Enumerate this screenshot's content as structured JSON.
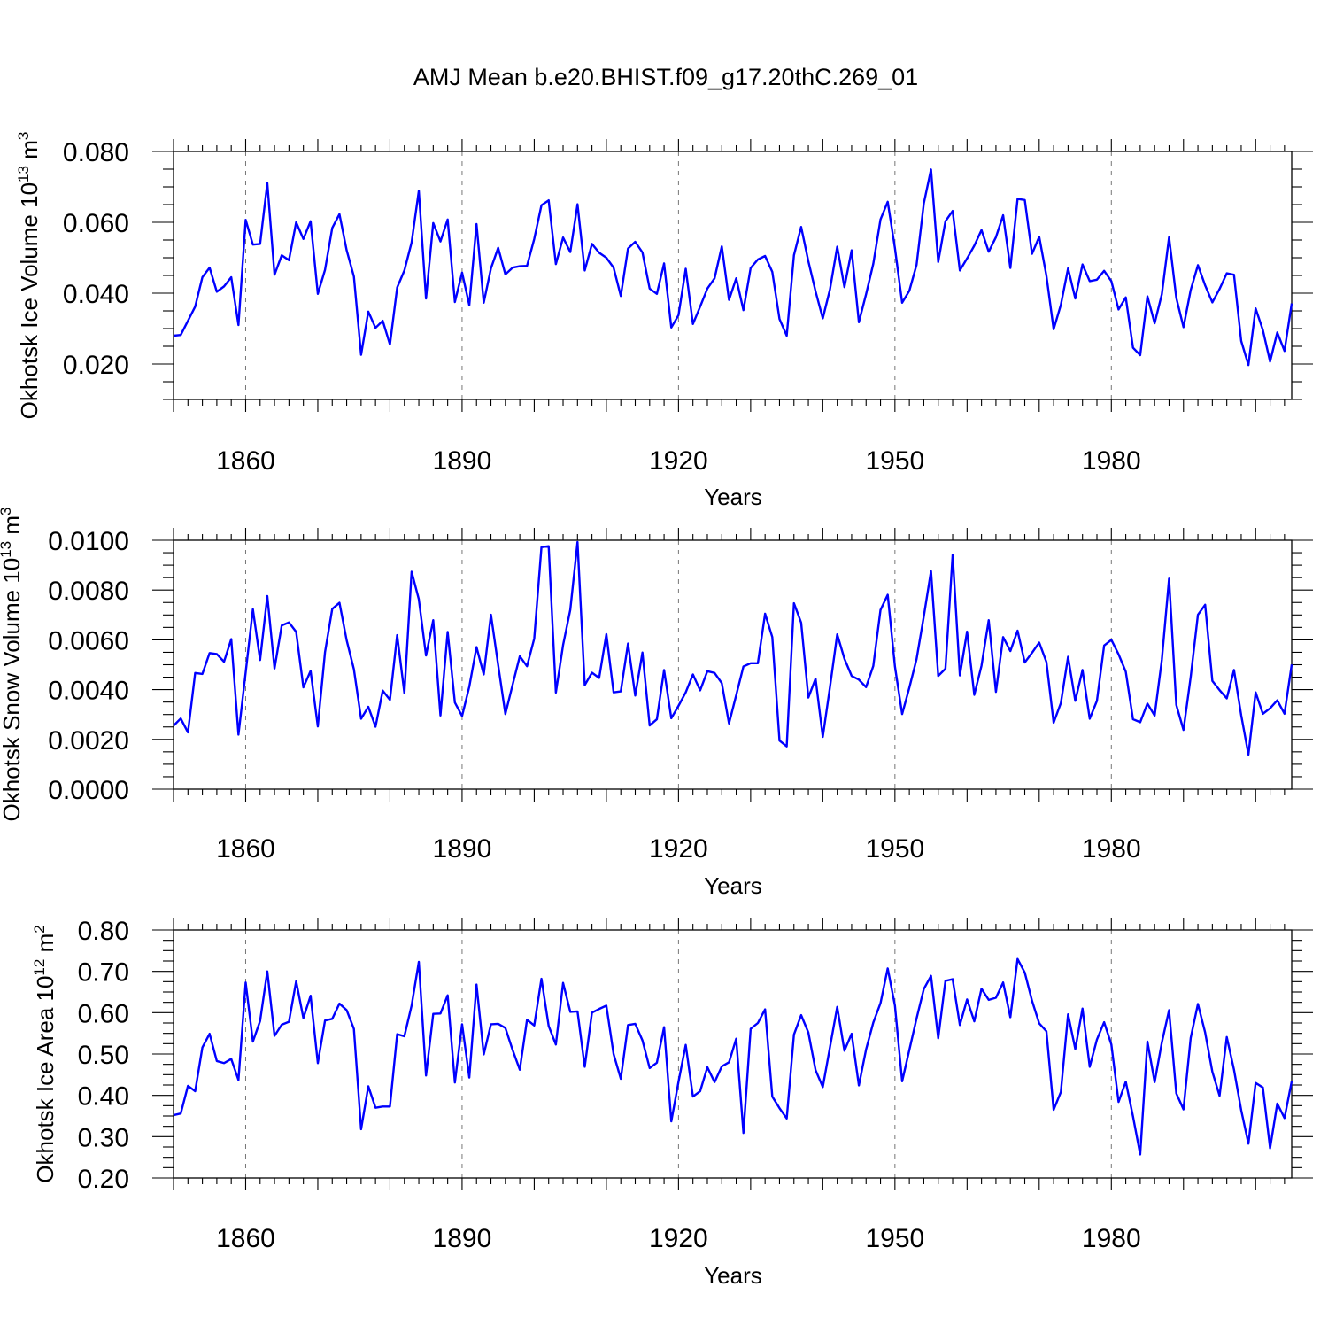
{
  "figure": {
    "title": "AMJ Mean b.e20.BHIST.f09_g17.20thC.269_01"
  },
  "chart_data": [
    {
      "type": "line",
      "id": "ice-volume",
      "ylabel_main": "Okhotsk Ice Volume 10",
      "ylabel_sup": "13",
      "ylabel_unit": " m",
      "ylabel_unit_sup": "3",
      "xlabel": "Years",
      "xlim": [
        1850,
        2005
      ],
      "ylim": [
        0.01,
        0.08
      ],
      "yticks": [
        0.02,
        0.04,
        0.06,
        0.08
      ],
      "ytick_labels": [
        "0.020",
        "0.040",
        "0.060",
        "0.080"
      ],
      "yminor_step": 0.005,
      "xticks": [
        1860,
        1890,
        1920,
        1950,
        1980
      ],
      "xtick_labels": [
        "1860",
        "1890",
        "1920",
        "1950",
        "1980"
      ],
      "grid_x": true,
      "color": "#0000ff",
      "series": [
        {
          "name": "Okhotsk Ice Volume",
          "x_start": 1850,
          "values": [
            0.028,
            0.0282,
            0.0322,
            0.0362,
            0.0445,
            0.0472,
            0.0404,
            0.0419,
            0.0445,
            0.031,
            0.0607,
            0.0537,
            0.0539,
            0.0711,
            0.0452,
            0.0507,
            0.0493,
            0.06,
            0.0553,
            0.0603,
            0.0398,
            0.0466,
            0.0584,
            0.0623,
            0.0521,
            0.0447,
            0.0226,
            0.0348,
            0.0302,
            0.0322,
            0.0255,
            0.0416,
            0.0464,
            0.0543,
            0.0689,
            0.0385,
            0.0598,
            0.0546,
            0.0608,
            0.0375,
            0.0458,
            0.0366,
            0.0595,
            0.0373,
            0.047,
            0.0528,
            0.0453,
            0.0472,
            0.0476,
            0.0477,
            0.0553,
            0.0648,
            0.0662,
            0.0482,
            0.0557,
            0.0516,
            0.0651,
            0.0464,
            0.0539,
            0.0514,
            0.05,
            0.0472,
            0.0392,
            0.0526,
            0.0545,
            0.0515,
            0.0413,
            0.0398,
            0.0484,
            0.0303,
            0.0338,
            0.0469,
            0.0313,
            0.0362,
            0.0413,
            0.0442,
            0.0532,
            0.0381,
            0.0442,
            0.0352,
            0.0471,
            0.0495,
            0.0505,
            0.046,
            0.0327,
            0.028,
            0.0507,
            0.0587,
            0.049,
            0.0405,
            0.0329,
            0.0411,
            0.0531,
            0.0417,
            0.0521,
            0.0318,
            0.0397,
            0.0483,
            0.0608,
            0.0658,
            0.0527,
            0.0373,
            0.0407,
            0.048,
            0.0653,
            0.0749,
            0.0488,
            0.0603,
            0.0632,
            0.0464,
            0.0498,
            0.0534,
            0.0578,
            0.0517,
            0.0558,
            0.062,
            0.0471,
            0.0666,
            0.0663,
            0.0511,
            0.0559,
            0.0449,
            0.0298,
            0.0367,
            0.047,
            0.0385,
            0.0481,
            0.0434,
            0.0438,
            0.0463,
            0.0434,
            0.0354,
            0.0388,
            0.0246,
            0.0225,
            0.0391,
            0.0315,
            0.0397,
            0.0558,
            0.0387,
            0.0304,
            0.0409,
            0.0479,
            0.0422,
            0.0374,
            0.0412,
            0.0456,
            0.0452,
            0.0265,
            0.0197,
            0.0357,
            0.0296,
            0.0207,
            0.0289,
            0.0237,
            0.0371
          ]
        }
      ]
    },
    {
      "type": "line",
      "id": "snow-volume",
      "ylabel_main": "Okhotsk Snow Volume 10",
      "ylabel_sup": "13",
      "ylabel_unit": " m",
      "ylabel_unit_sup": "3",
      "xlabel": "Years",
      "xlim": [
        1850,
        2005
      ],
      "ylim": [
        0.0,
        0.01
      ],
      "yticks": [
        0.0,
        0.002,
        0.004,
        0.006,
        0.008,
        0.01
      ],
      "ytick_labels": [
        "0.0000",
        "0.0020",
        "0.0040",
        "0.0060",
        "0.0080",
        "0.0100"
      ],
      "yminor_step": 0.0005,
      "xticks": [
        1860,
        1890,
        1920,
        1950,
        1980
      ],
      "xtick_labels": [
        "1860",
        "1890",
        "1920",
        "1950",
        "1980"
      ],
      "grid_x": true,
      "color": "#0000ff",
      "series": [
        {
          "name": "Okhotsk Snow Volume",
          "x_start": 1850,
          "values": [
            0.00255,
            0.00284,
            0.00228,
            0.00467,
            0.00463,
            0.00547,
            0.00543,
            0.00512,
            0.00603,
            0.00219,
            0.00469,
            0.00723,
            0.00519,
            0.00776,
            0.00485,
            0.00658,
            0.0067,
            0.00632,
            0.00409,
            0.00475,
            0.00252,
            0.00551,
            0.00724,
            0.00749,
            0.00598,
            0.00482,
            0.00283,
            0.00331,
            0.00251,
            0.00396,
            0.00359,
            0.00619,
            0.00386,
            0.00874,
            0.00763,
            0.00537,
            0.00679,
            0.00296,
            0.00632,
            0.00348,
            0.00294,
            0.00412,
            0.00571,
            0.00461,
            0.00701,
            0.00499,
            0.00302,
            0.00419,
            0.00534,
            0.00494,
            0.00605,
            0.00972,
            0.00976,
            0.00388,
            0.00579,
            0.00721,
            0.00993,
            0.00418,
            0.00468,
            0.00447,
            0.00623,
            0.00389,
            0.00393,
            0.00585,
            0.00376,
            0.00549,
            0.00256,
            0.00281,
            0.00479,
            0.00285,
            0.00335,
            0.00389,
            0.00461,
            0.00397,
            0.00474,
            0.00467,
            0.00426,
            0.00264,
            0.00378,
            0.00493,
            0.00506,
            0.00506,
            0.00705,
            0.00611,
            0.00195,
            0.00172,
            0.00747,
            0.00669,
            0.00368,
            0.00444,
            0.0021,
            0.00411,
            0.00622,
            0.00524,
            0.00455,
            0.0044,
            0.0041,
            0.00495,
            0.0072,
            0.00781,
            0.00493,
            0.00302,
            0.00408,
            0.00523,
            0.00694,
            0.00876,
            0.00455,
            0.00484,
            0.00942,
            0.00457,
            0.00633,
            0.00379,
            0.00496,
            0.00679,
            0.00391,
            0.00611,
            0.00555,
            0.00637,
            0.00509,
            0.00548,
            0.00589,
            0.00511,
            0.00267,
            0.00346,
            0.00532,
            0.00355,
            0.00479,
            0.00283,
            0.00355,
            0.00577,
            0.006,
            0.00542,
            0.00472,
            0.00281,
            0.00269,
            0.00344,
            0.00296,
            0.0052,
            0.00846,
            0.00339,
            0.00238,
            0.00451,
            0.00701,
            0.00741,
            0.00435,
            0.00398,
            0.00365,
            0.00479,
            0.00297,
            0.00139,
            0.00389,
            0.00303,
            0.00325,
            0.00357,
            0.00303,
            0.00501
          ]
        }
      ]
    },
    {
      "type": "line",
      "id": "ice-area",
      "ylabel_main": "Okhotsk Ice Area 10",
      "ylabel_sup": "12",
      "ylabel_unit": " m",
      "ylabel_unit_sup": "2",
      "xlabel": "Years",
      "xlim": [
        1850,
        2005
      ],
      "ylim": [
        0.2,
        0.8
      ],
      "yticks": [
        0.2,
        0.3,
        0.4,
        0.5,
        0.6,
        0.7,
        0.8
      ],
      "ytick_labels": [
        "0.20",
        "0.30",
        "0.40",
        "0.50",
        "0.60",
        "0.70",
        "0.80"
      ],
      "yminor_step": 0.025,
      "xticks": [
        1860,
        1890,
        1920,
        1950,
        1980
      ],
      "xtick_labels": [
        "1860",
        "1890",
        "1920",
        "1950",
        "1980"
      ],
      "grid_x": true,
      "color": "#0000ff",
      "series": [
        {
          "name": "Okhotsk Ice Area",
          "x_start": 1850,
          "values": [
            0.352,
            0.356,
            0.423,
            0.41,
            0.516,
            0.549,
            0.483,
            0.478,
            0.488,
            0.437,
            0.673,
            0.53,
            0.58,
            0.7,
            0.544,
            0.571,
            0.578,
            0.676,
            0.587,
            0.641,
            0.478,
            0.581,
            0.585,
            0.622,
            0.606,
            0.561,
            0.318,
            0.422,
            0.37,
            0.373,
            0.373,
            0.548,
            0.543,
            0.617,
            0.723,
            0.448,
            0.597,
            0.598,
            0.642,
            0.431,
            0.572,
            0.443,
            0.668,
            0.499,
            0.572,
            0.573,
            0.563,
            0.51,
            0.462,
            0.583,
            0.569,
            0.682,
            0.568,
            0.523,
            0.672,
            0.602,
            0.603,
            0.469,
            0.6,
            0.609,
            0.617,
            0.5,
            0.44,
            0.57,
            0.573,
            0.533,
            0.466,
            0.479,
            0.565,
            0.337,
            0.433,
            0.522,
            0.397,
            0.41,
            0.468,
            0.432,
            0.47,
            0.48,
            0.537,
            0.309,
            0.561,
            0.575,
            0.608,
            0.397,
            0.369,
            0.344,
            0.547,
            0.594,
            0.552,
            0.461,
            0.42,
            0.517,
            0.614,
            0.508,
            0.549,
            0.424,
            0.511,
            0.576,
            0.623,
            0.707,
            0.617,
            0.434,
            0.51,
            0.586,
            0.657,
            0.689,
            0.538,
            0.677,
            0.681,
            0.57,
            0.632,
            0.579,
            0.658,
            0.631,
            0.636,
            0.673,
            0.589,
            0.73,
            0.697,
            0.629,
            0.574,
            0.555,
            0.365,
            0.408,
            0.596,
            0.512,
            0.61,
            0.469,
            0.535,
            0.577,
            0.523,
            0.384,
            0.433,
            0.349,
            0.257,
            0.53,
            0.432,
            0.528,
            0.606,
            0.405,
            0.366,
            0.539,
            0.621,
            0.552,
            0.457,
            0.399,
            0.541,
            0.462,
            0.364,
            0.283,
            0.43,
            0.419,
            0.272,
            0.38,
            0.345,
            0.434
          ]
        }
      ]
    }
  ]
}
